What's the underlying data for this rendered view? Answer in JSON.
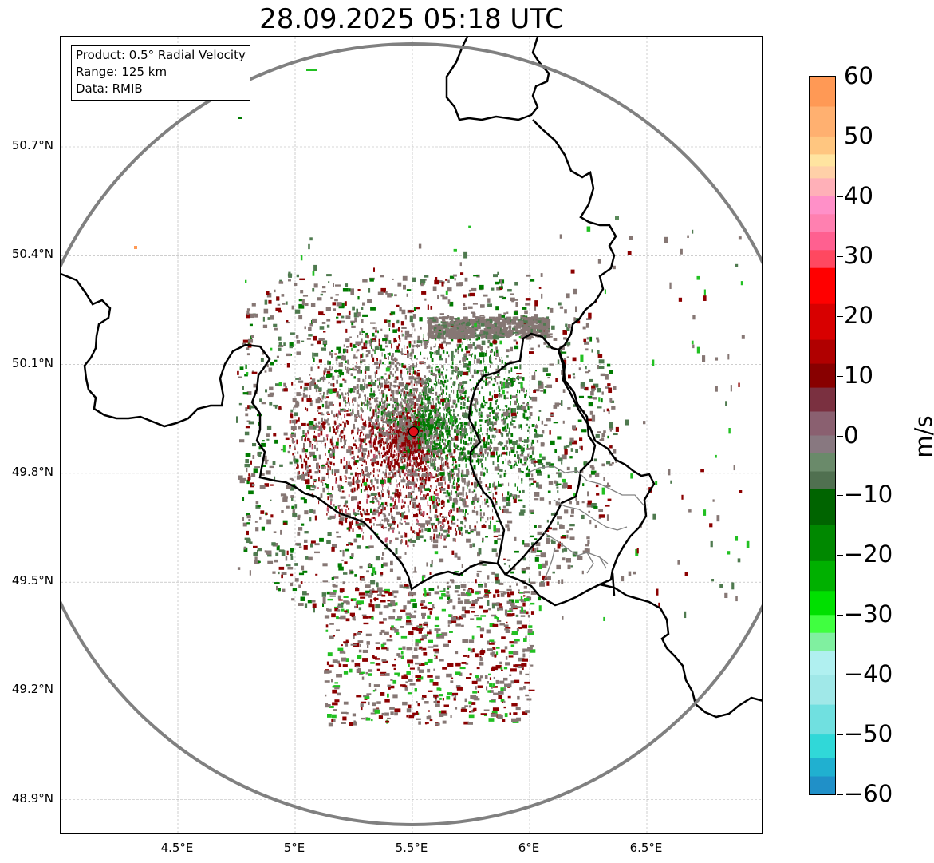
{
  "title": "28.09.2025 05:18 UTC",
  "info_box": {
    "product": "Product: 0.5° Radial Velocity",
    "range": "Range: 125 km",
    "data": "Data: RMIB"
  },
  "latitude_labels": [
    "50.7°N",
    "50.4°N",
    "50.1°N",
    "49.8°N",
    "49.5°N",
    "49.2°N",
    "48.9°N"
  ],
  "longitude_labels": [
    "4.5°E",
    "5°E",
    "5.5°E",
    "6°E",
    "6.5°E"
  ],
  "latitudes": [
    50.7,
    50.4,
    50.1,
    49.8,
    49.5,
    49.2,
    48.9
  ],
  "longitudes": [
    4.5,
    5.0,
    5.5,
    6.0,
    6.5
  ],
  "colorbar": {
    "unit": "m/s",
    "min": -60,
    "max": 60,
    "ticks": [
      "60",
      "50",
      "40",
      "30",
      "20",
      "10",
      "0",
      "−10",
      "−20",
      "−30",
      "−40",
      "−50",
      "−60"
    ],
    "tick_values": [
      60,
      50,
      40,
      30,
      20,
      10,
      0,
      -10,
      -20,
      -30,
      -40,
      -50,
      -60
    ]
  },
  "radar_site": {
    "lon": 5.505,
    "lat": 49.915,
    "color": "#e0101a"
  },
  "colors": {
    "red": "#8b0000",
    "grey": "#867774",
    "green": "#007a00",
    "range_ring": "#808080",
    "border": "#000000"
  }
}
